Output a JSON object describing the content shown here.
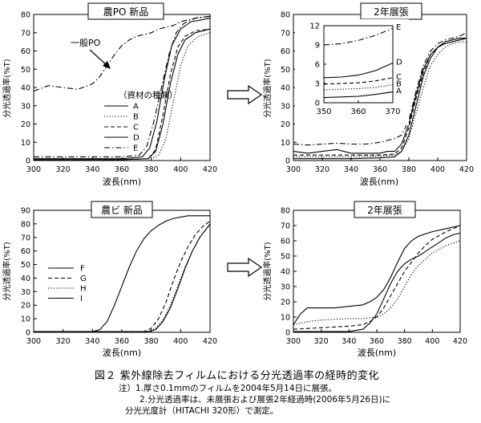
{
  "figure": {
    "caption": "図２ 紫外線除去フィルムにおける分光透過率の経時的変化",
    "notes": [
      "注）1.厚さ0.1mmのフィルムを2004年5月14日に展張。",
      "2.分光透過率は、未展張および展張2年経過時(2006年5月26日)に",
      "分光光度計（HITACHI 320形）で測定。"
    ],
    "arrow_icons": [
      "right-arrow-icon",
      "right-arrow-icon"
    ]
  },
  "chart_data": [
    {
      "type": "line",
      "title": "農PO 新品",
      "xlabel": "波長(nm)",
      "ylabel": "分光透過率(%T)",
      "xlim": [
        300,
        420
      ],
      "ylim": [
        0,
        80
      ],
      "xticks": [
        300,
        320,
        340,
        360,
        380,
        400,
        420
      ],
      "yticks": [
        0,
        10,
        20,
        30,
        40,
        50,
        60,
        70,
        80
      ],
      "legend_title": "（資材の種類）",
      "annotation": "一般PO",
      "series": [
        {
          "name": "A",
          "style": "solid",
          "x": [
            300,
            360,
            378,
            383,
            388,
            393,
            398,
            403,
            410,
            420
          ],
          "y": [
            0.5,
            0.5,
            1,
            5,
            20,
            42,
            58,
            66,
            70,
            72
          ]
        },
        {
          "name": "B",
          "style": "dotted",
          "x": [
            300,
            360,
            380,
            385,
            390,
            395,
            400,
            405,
            412,
            420
          ],
          "y": [
            0.5,
            0.5,
            1,
            3,
            12,
            32,
            52,
            63,
            68,
            70
          ]
        },
        {
          "name": "C",
          "style": "dashed",
          "x": [
            300,
            360,
            378,
            383,
            388,
            393,
            398,
            403,
            410,
            420
          ],
          "y": [
            0.5,
            0.5,
            1,
            6,
            25,
            47,
            62,
            68,
            71,
            72
          ]
        },
        {
          "name": "D",
          "style": "solid",
          "x": [
            300,
            360,
            374,
            379,
            384,
            389,
            394,
            400,
            407,
            414,
            420
          ],
          "y": [
            1,
            1,
            2,
            7,
            22,
            45,
            63,
            72,
            76,
            77,
            78
          ]
        },
        {
          "name": "E",
          "style": "dashdot",
          "x": [
            300,
            360,
            372,
            377,
            382,
            387,
            392,
            397,
            402,
            410,
            420
          ],
          "y": [
            2,
            2,
            3,
            8,
            22,
            40,
            58,
            70,
            75,
            78,
            79
          ]
        },
        {
          "name": "一般PO",
          "style": "dashdot",
          "x": [
            300,
            310,
            320,
            330,
            340,
            345,
            350,
            355,
            360,
            365,
            370,
            375,
            380,
            385,
            390,
            395,
            400,
            410,
            420
          ],
          "y": [
            38,
            41,
            40,
            39,
            42,
            46,
            52,
            58,
            63,
            66,
            68,
            69,
            70,
            72,
            73,
            74,
            76,
            78,
            79
          ]
        }
      ]
    },
    {
      "type": "line",
      "title": "2年展張",
      "xlabel": "波長(nm)",
      "ylabel": "分光透過率(%T)",
      "xlim": [
        300,
        420
      ],
      "ylim": [
        0,
        80
      ],
      "xticks": [
        300,
        320,
        340,
        360,
        380,
        400,
        420
      ],
      "yticks": [
        0,
        10,
        20,
        30,
        40,
        50,
        60,
        70,
        80
      ],
      "series": [
        {
          "name": "A",
          "style": "solid",
          "x": [
            300,
            320,
            340,
            360,
            370,
            375,
            380,
            385,
            390,
            395,
            400,
            405,
            410,
            415,
            420
          ],
          "y": [
            1,
            1,
            1,
            1.5,
            2,
            5,
            14,
            30,
            46,
            56,
            62,
            65,
            66,
            67,
            67
          ]
        },
        {
          "name": "B",
          "style": "dotted",
          "x": [
            300,
            320,
            340,
            360,
            370,
            375,
            380,
            385,
            390,
            395,
            400,
            405,
            410,
            415,
            420
          ],
          "y": [
            2,
            2,
            2,
            2.5,
            3,
            5,
            12,
            26,
            40,
            52,
            58,
            62,
            64,
            65,
            65
          ]
        },
        {
          "name": "C",
          "style": "dashed",
          "x": [
            300,
            320,
            340,
            360,
            370,
            375,
            380,
            385,
            390,
            395,
            400,
            405,
            410,
            415,
            420
          ],
          "y": [
            3,
            3,
            3,
            3,
            3.5,
            7,
            18,
            34,
            48,
            58,
            62,
            64,
            65,
            66,
            67
          ]
        },
        {
          "name": "D",
          "style": "solid",
          "x": [
            300,
            310,
            320,
            330,
            340,
            350,
            360,
            365,
            370,
            375,
            380,
            385,
            390,
            395,
            400,
            405,
            410,
            415,
            420
          ],
          "y": [
            5,
            4,
            5,
            6,
            4,
            4,
            4,
            5,
            5,
            9,
            20,
            36,
            50,
            58,
            62,
            64,
            65,
            66,
            67
          ]
        },
        {
          "name": "E",
          "style": "dashdot",
          "x": [
            300,
            310,
            320,
            330,
            340,
            350,
            360,
            365,
            370,
            375,
            380,
            385,
            390,
            395,
            400,
            405,
            410,
            415,
            420
          ],
          "y": [
            9,
            8.5,
            9,
            9.5,
            9,
            9,
            10,
            11,
            12,
            14,
            22,
            38,
            52,
            60,
            64,
            66,
            67,
            68,
            70
          ]
        }
      ],
      "inset": {
        "xlim": [
          350,
          370
        ],
        "ylim": [
          0,
          12
        ],
        "xticks": [
          350,
          360,
          370
        ],
        "yticks": [
          0,
          3,
          6,
          9,
          12
        ],
        "series": [
          {
            "name": "A",
            "style": "solid",
            "x": [
              350,
              355,
              360,
              365,
              370
            ],
            "y": [
              0.8,
              0.9,
              1.0,
              1.3,
              1.7
            ]
          },
          {
            "name": "B",
            "style": "dotted",
            "x": [
              350,
              355,
              360,
              365,
              370
            ],
            "y": [
              2.0,
              2.1,
              2.2,
              2.4,
              2.8
            ]
          },
          {
            "name": "C",
            "style": "dashed",
            "x": [
              350,
              355,
              360,
              365,
              370
            ],
            "y": [
              2.9,
              3.0,
              3.1,
              3.4,
              3.9
            ]
          },
          {
            "name": "D",
            "style": "solid",
            "x": [
              350,
              355,
              360,
              365,
              370
            ],
            "y": [
              3.9,
              4.0,
              4.3,
              5.0,
              6.2
            ]
          },
          {
            "name": "E",
            "style": "dashdot",
            "x": [
              350,
              355,
              360,
              365,
              370
            ],
            "y": [
              9.0,
              9.2,
              9.7,
              10.5,
              11.6
            ]
          }
        ]
      }
    },
    {
      "type": "line",
      "title": "農ビ 新品",
      "xlabel": "波長(nm)",
      "ylabel": "分光透過率(%T)",
      "xlim": [
        300,
        420
      ],
      "ylim": [
        0,
        90
      ],
      "xticks": [
        300,
        320,
        340,
        360,
        380,
        400,
        420
      ],
      "yticks": [
        0,
        10,
        20,
        30,
        40,
        50,
        60,
        70,
        80,
        90
      ],
      "series": [
        {
          "name": "F",
          "style": "solid",
          "x": [
            300,
            340,
            345,
            350,
            355,
            360,
            365,
            370,
            375,
            380,
            385,
            390,
            395,
            400,
            405,
            410,
            415,
            420
          ],
          "y": [
            0.5,
            0.5,
            2,
            8,
            20,
            34,
            48,
            60,
            69,
            75,
            79,
            82,
            84,
            85,
            86,
            86,
            86,
            86
          ]
        },
        {
          "name": "G",
          "style": "dashed",
          "x": [
            300,
            375,
            380,
            385,
            390,
            395,
            400,
            405,
            410,
            415,
            420
          ],
          "y": [
            0.5,
            0.5,
            3,
            10,
            22,
            38,
            52,
            63,
            72,
            78,
            82
          ]
        },
        {
          "name": "H",
          "style": "dotted",
          "x": [
            300,
            378,
            383,
            388,
            393,
            398,
            403,
            408,
            413,
            418,
            420
          ],
          "y": [
            0.5,
            0.5,
            3,
            9,
            20,
            34,
            48,
            60,
            70,
            77,
            79
          ]
        },
        {
          "name": "I",
          "style": "solid",
          "x": [
            300,
            378,
            383,
            388,
            393,
            398,
            403,
            408,
            413,
            418,
            420
          ],
          "y": [
            0.5,
            0.5,
            2,
            8,
            18,
            32,
            47,
            60,
            70,
            77,
            80
          ]
        }
      ]
    },
    {
      "type": "line",
      "title": "2年展張",
      "xlabel": "波長(nm)",
      "ylabel": "分光透過率(%T)",
      "xlim": [
        300,
        420
      ],
      "ylim": [
        0,
        80
      ],
      "xticks": [
        300,
        320,
        340,
        360,
        380,
        400,
        420
      ],
      "yticks": [
        0,
        10,
        20,
        30,
        40,
        50,
        60,
        70,
        80
      ],
      "series": [
        {
          "name": "F",
          "style": "solid",
          "x": [
            300,
            305,
            310,
            320,
            330,
            340,
            350,
            355,
            360,
            365,
            370,
            375,
            380,
            385,
            390,
            400,
            410,
            420
          ],
          "y": [
            5,
            12,
            16,
            16,
            16,
            17,
            18,
            20,
            23,
            28,
            36,
            46,
            55,
            60,
            63,
            66,
            68,
            70
          ]
        },
        {
          "name": "G",
          "style": "dashed",
          "x": [
            300,
            320,
            340,
            350,
            355,
            360,
            365,
            370,
            375,
            380,
            385,
            390,
            395,
            400,
            410,
            420
          ],
          "y": [
            2,
            3,
            4,
            5,
            7,
            10,
            16,
            24,
            32,
            40,
            46,
            52,
            57,
            61,
            66,
            70
          ]
        },
        {
          "name": "H",
          "style": "dotted",
          "x": [
            300,
            310,
            320,
            340,
            350,
            360,
            365,
            370,
            375,
            380,
            385,
            390,
            395,
            400,
            410,
            420
          ],
          "y": [
            5,
            7,
            8,
            9,
            9,
            10,
            12,
            16,
            22,
            30,
            38,
            44,
            48,
            52,
            57,
            60
          ]
        },
        {
          "name": "I",
          "style": "solid",
          "x": [
            300,
            320,
            340,
            350,
            355,
            360,
            365,
            370,
            375,
            380,
            385,
            390,
            395,
            400,
            405,
            410,
            415,
            420
          ],
          "y": [
            0.5,
            0.5,
            0.5,
            2,
            6,
            12,
            22,
            32,
            40,
            45,
            48,
            50,
            53,
            56,
            59,
            62,
            64,
            65
          ]
        }
      ]
    }
  ]
}
